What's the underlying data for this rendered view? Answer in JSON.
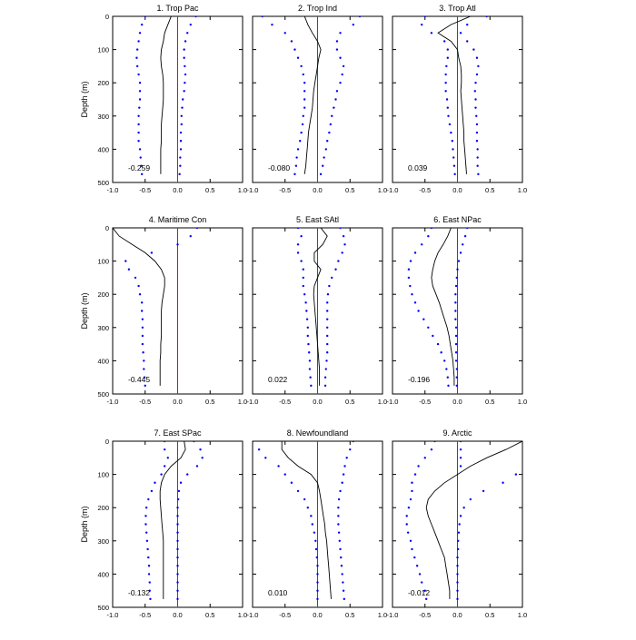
{
  "chart_data": {
    "type": "line",
    "layout": "3x3 panel grid",
    "ylabel": "Depth (m)",
    "x_axis": {
      "range": [
        -1.0,
        1.0
      ],
      "ticks": [
        "-1.0",
        "-0.5",
        "0.0",
        "0.5",
        "1.0"
      ]
    },
    "y_axis": {
      "range": [
        0,
        500
      ],
      "inverted": true,
      "ticks": [
        "0",
        "100",
        "200",
        "300",
        "400",
        "500"
      ]
    },
    "reference_line": {
      "x": 0,
      "color": "#ff0000"
    },
    "colors": {
      "solid": "#000000",
      "dotted": "#0000ff"
    },
    "depths": [
      0,
      25,
      50,
      75,
      100,
      125,
      150,
      175,
      200,
      225,
      250,
      275,
      300,
      325,
      350,
      375,
      400,
      425,
      450,
      475
    ],
    "panels": [
      {
        "title": "1. Trop Pac",
        "annotation": "-0.259",
        "series": [
          {
            "style": "solid",
            "x": [
              -0.1,
              -0.15,
              -0.2,
              -0.22,
              -0.25,
              -0.26,
              -0.25,
              -0.23,
              -0.22,
              -0.22,
              -0.22,
              -0.23,
              -0.24,
              -0.25,
              -0.25,
              -0.25,
              -0.26,
              -0.26,
              -0.26,
              -0.26
            ]
          },
          {
            "style": "dotted",
            "x": [
              -0.5,
              -0.55,
              -0.58,
              -0.6,
              -0.62,
              -0.63,
              -0.62,
              -0.6,
              -0.58,
              -0.58,
              -0.58,
              -0.59,
              -0.6,
              -0.6,
              -0.6,
              -0.6,
              -0.58,
              -0.57,
              -0.56,
              -0.55
            ]
          },
          {
            "style": "dotted",
            "x": [
              0.28,
              0.2,
              0.15,
              0.12,
              0.1,
              0.1,
              0.11,
              0.12,
              0.11,
              0.1,
              0.08,
              0.07,
              0.06,
              0.06,
              0.05,
              0.05,
              0.05,
              0.04,
              0.04,
              0.03
            ]
          }
        ]
      },
      {
        "title": "2. Trop Ind",
        "annotation": "-0.080",
        "series": [
          {
            "style": "solid",
            "x": [
              -0.2,
              -0.15,
              -0.08,
              0.0,
              0.05,
              0.02,
              0.0,
              -0.02,
              -0.04,
              -0.06,
              -0.07,
              -0.08,
              -0.1,
              -0.12,
              -0.14,
              -0.15,
              -0.16,
              -0.17,
              -0.18,
              -0.2
            ]
          },
          {
            "style": "dotted",
            "x": [
              -0.85,
              -0.7,
              -0.5,
              -0.4,
              -0.35,
              -0.3,
              -0.25,
              -0.22,
              -0.2,
              -0.2,
              -0.2,
              -0.2,
              -0.22,
              -0.23,
              -0.25,
              -0.27,
              -0.3,
              -0.32,
              -0.33,
              -0.35
            ]
          },
          {
            "style": "dotted",
            "x": [
              0.65,
              0.55,
              0.35,
              0.3,
              0.3,
              0.35,
              0.4,
              0.38,
              0.35,
              0.3,
              0.28,
              0.25,
              0.22,
              0.2,
              0.18,
              0.15,
              0.13,
              0.1,
              0.08,
              0.05
            ]
          }
        ]
      },
      {
        "title": "3. Trop Atl",
        "annotation": "0.039",
        "series": [
          {
            "style": "solid",
            "x": [
              0.2,
              -0.1,
              -0.3,
              -0.1,
              0.0,
              0.02,
              0.05,
              0.06,
              0.06,
              0.05,
              0.06,
              0.07,
              0.08,
              0.09,
              0.1,
              0.1,
              0.11,
              0.12,
              0.13,
              0.14
            ]
          },
          {
            "style": "dotted",
            "x": [
              -0.5,
              -0.55,
              -0.4,
              -0.2,
              -0.15,
              -0.15,
              -0.17,
              -0.18,
              -0.18,
              -0.18,
              -0.16,
              -0.15,
              -0.14,
              -0.12,
              -0.1,
              -0.08,
              -0.07,
              -0.06,
              -0.05,
              -0.04
            ]
          },
          {
            "style": "dotted",
            "x": [
              0.45,
              0.15,
              0.05,
              0.15,
              0.25,
              0.3,
              0.32,
              0.3,
              0.28,
              0.27,
              0.28,
              0.28,
              0.29,
              0.3,
              0.3,
              0.3,
              0.31,
              0.31,
              0.31,
              0.32
            ]
          }
        ]
      },
      {
        "title": "4. Maritime Con",
        "annotation": "-0.445",
        "series": [
          {
            "style": "solid",
            "x": [
              -1.0,
              -0.9,
              -0.7,
              -0.5,
              -0.35,
              -0.25,
              -0.2,
              -0.2,
              -0.22,
              -0.24,
              -0.25,
              -0.25,
              -0.25,
              -0.25,
              -0.26,
              -0.26,
              -0.27,
              -0.27,
              -0.27,
              -0.27
            ]
          },
          {
            "style": "dotted",
            "x": [
              0.3,
              0.2,
              0.0,
              -0.4,
              -0.8,
              -0.75,
              -0.65,
              -0.6,
              -0.58,
              -0.55,
              -0.55,
              -0.54,
              -0.54,
              -0.54,
              -0.54,
              -0.53,
              -0.52,
              -0.52,
              -0.51,
              -0.5
            ]
          }
        ]
      },
      {
        "title": "5. East SAtl",
        "annotation": "0.022",
        "series": [
          {
            "style": "solid",
            "x": [
              0.05,
              0.15,
              0.08,
              -0.05,
              -0.05,
              0.05,
              0.0,
              -0.05,
              -0.06,
              -0.05,
              -0.04,
              -0.03,
              -0.02,
              -0.01,
              0.0,
              0.01,
              0.02,
              0.03,
              0.03,
              0.03
            ]
          },
          {
            "style": "dotted",
            "x": [
              -0.3,
              -0.25,
              -0.3,
              -0.3,
              -0.25,
              -0.22,
              -0.22,
              -0.22,
              -0.2,
              -0.18,
              -0.17,
              -0.16,
              -0.15,
              -0.15,
              -0.14,
              -0.13,
              -0.12,
              -0.12,
              -0.11,
              -0.1
            ]
          },
          {
            "style": "dotted",
            "x": [
              0.35,
              0.4,
              0.42,
              0.38,
              0.32,
              0.28,
              0.22,
              0.18,
              0.16,
              0.15,
              0.15,
              0.15,
              0.15,
              0.15,
              0.15,
              0.15,
              0.14,
              0.13,
              0.12,
              0.12
            ]
          }
        ]
      },
      {
        "title": "6. East NPac",
        "annotation": "-0.196",
        "series": [
          {
            "style": "solid",
            "x": [
              -0.1,
              -0.15,
              -0.22,
              -0.3,
              -0.35,
              -0.38,
              -0.4,
              -0.38,
              -0.33,
              -0.28,
              -0.24,
              -0.2,
              -0.16,
              -0.13,
              -0.11,
              -0.09,
              -0.07,
              -0.06,
              -0.05,
              -0.05
            ]
          },
          {
            "style": "dotted",
            "x": [
              -0.4,
              -0.45,
              -0.55,
              -0.65,
              -0.72,
              -0.75,
              -0.75,
              -0.73,
              -0.7,
              -0.65,
              -0.6,
              -0.52,
              -0.45,
              -0.38,
              -0.3,
              -0.25,
              -0.2,
              -0.17,
              -0.15,
              -0.14
            ]
          },
          {
            "style": "dotted",
            "x": [
              0.15,
              0.12,
              0.08,
              0.05,
              0.02,
              0.0,
              -0.01,
              -0.02,
              -0.03,
              -0.03,
              -0.03,
              -0.03,
              -0.02,
              -0.02,
              -0.02,
              -0.02,
              -0.02,
              -0.01,
              -0.01,
              -0.01
            ]
          }
        ]
      },
      {
        "title": "7. East SPac",
        "annotation": "-0.132",
        "series": [
          {
            "style": "solid",
            "x": [
              0.1,
              0.12,
              0.05,
              -0.1,
              -0.2,
              -0.25,
              -0.27,
              -0.27,
              -0.26,
              -0.25,
              -0.24,
              -0.23,
              -0.22,
              -0.22,
              -0.22,
              -0.22,
              -0.22,
              -0.22,
              -0.22,
              -0.22
            ]
          },
          {
            "style": "dotted",
            "x": [
              -0.2,
              -0.2,
              -0.15,
              -0.2,
              -0.25,
              -0.35,
              -0.4,
              -0.45,
              -0.48,
              -0.49,
              -0.49,
              -0.48,
              -0.47,
              -0.46,
              -0.45,
              -0.44,
              -0.44,
              -0.43,
              -0.43,
              -0.42
            ]
          },
          {
            "style": "dotted",
            "x": [
              0.25,
              0.35,
              0.38,
              0.3,
              0.15,
              0.05,
              0.02,
              0.01,
              0.0,
              0.0,
              0.0,
              0.0,
              0.0,
              0.0,
              0.0,
              0.0,
              0.0,
              0.0,
              0.0,
              0.0
            ]
          }
        ]
      },
      {
        "title": "8. Newfoundland",
        "annotation": "0.010",
        "series": [
          {
            "style": "solid",
            "x": [
              -0.55,
              -0.55,
              -0.45,
              -0.3,
              -0.1,
              0.0,
              0.03,
              0.05,
              0.07,
              0.09,
              0.11,
              0.12,
              0.14,
              0.15,
              0.16,
              0.17,
              0.18,
              0.19,
              0.2,
              0.21
            ]
          },
          {
            "style": "dotted",
            "x": [
              -1.0,
              -0.9,
              -0.8,
              -0.6,
              -0.5,
              -0.4,
              -0.3,
              -0.2,
              -0.15,
              -0.1,
              -0.08,
              -0.05,
              -0.03,
              -0.02,
              -0.01,
              0.0,
              0.0,
              0.0,
              0.0,
              0.0
            ]
          },
          {
            "style": "dotted",
            "x": [
              0.55,
              0.5,
              0.45,
              0.42,
              0.4,
              0.38,
              0.35,
              0.33,
              0.32,
              0.32,
              0.32,
              0.33,
              0.34,
              0.35,
              0.36,
              0.37,
              0.38,
              0.39,
              0.4,
              0.41
            ]
          }
        ]
      },
      {
        "title": "9. Arctic",
        "annotation": "-0.012",
        "series": [
          {
            "style": "solid",
            "x": [
              1.0,
              0.75,
              0.45,
              0.2,
              0.0,
              -0.2,
              -0.35,
              -0.45,
              -0.48,
              -0.45,
              -0.4,
              -0.35,
              -0.3,
              -0.25,
              -0.2,
              -0.18,
              -0.16,
              -0.14,
              -0.12,
              -0.12
            ]
          },
          {
            "style": "dotted",
            "x": [
              -0.35,
              -0.4,
              -0.5,
              -0.6,
              -0.65,
              -0.7,
              -0.7,
              -0.72,
              -0.75,
              -0.78,
              -0.78,
              -0.76,
              -0.72,
              -0.7,
              -0.66,
              -0.62,
              -0.58,
              -0.55,
              -0.5,
              -0.48
            ]
          },
          {
            "style": "dotted",
            "x": [
              0.05,
              0.05,
              0.05,
              0.05,
              0.9,
              0.7,
              0.4,
              0.2,
              0.1,
              0.05,
              0.03,
              0.02,
              0.01,
              0.01,
              0.0,
              0.0,
              0.0,
              0.0,
              0.0,
              0.0
            ]
          }
        ]
      }
    ]
  }
}
